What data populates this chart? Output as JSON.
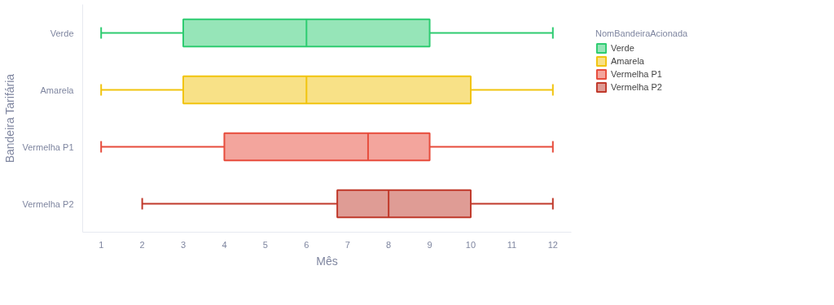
{
  "chart_data": {
    "type": "box",
    "orientation": "horizontal",
    "xlabel": "Mês",
    "ylabel": "Bandeira Tarifária",
    "legend_title": "NomBandeiraAcionada",
    "legend": "top right",
    "grid": false,
    "categories": [
      "Verde",
      "Amarela",
      "Vermelha P1",
      "Vermelha P2"
    ],
    "xlim": [
      0.55,
      12.45
    ],
    "xticks": [
      1,
      2,
      3,
      4,
      5,
      6,
      7,
      8,
      9,
      10,
      11,
      12
    ],
    "series": [
      {
        "name": "Verde",
        "color": "#2ecc71",
        "boxes": [
          {
            "low": 1,
            "q1": 3,
            "median": 6,
            "q3": 9,
            "high": 12
          },
          null,
          null,
          null
        ]
      },
      {
        "name": "Amarela",
        "color": "#f1c40f",
        "boxes": [
          null,
          {
            "low": 1,
            "q1": 3,
            "median": 6,
            "q3": 10,
            "high": 12
          },
          null,
          null
        ]
      },
      {
        "name": "Vermelha P1",
        "color": "#e74c3c",
        "boxes": [
          null,
          null,
          {
            "low": 1,
            "q1": 4,
            "median": 7.5,
            "q3": 9,
            "high": 12
          },
          null
        ]
      },
      {
        "name": "Vermelha P2",
        "color": "#c0392b",
        "boxes": [
          null,
          null,
          null,
          {
            "low": 2,
            "q1": 6.75,
            "median": 8,
            "q3": 10,
            "high": 12
          }
        ]
      }
    ]
  }
}
